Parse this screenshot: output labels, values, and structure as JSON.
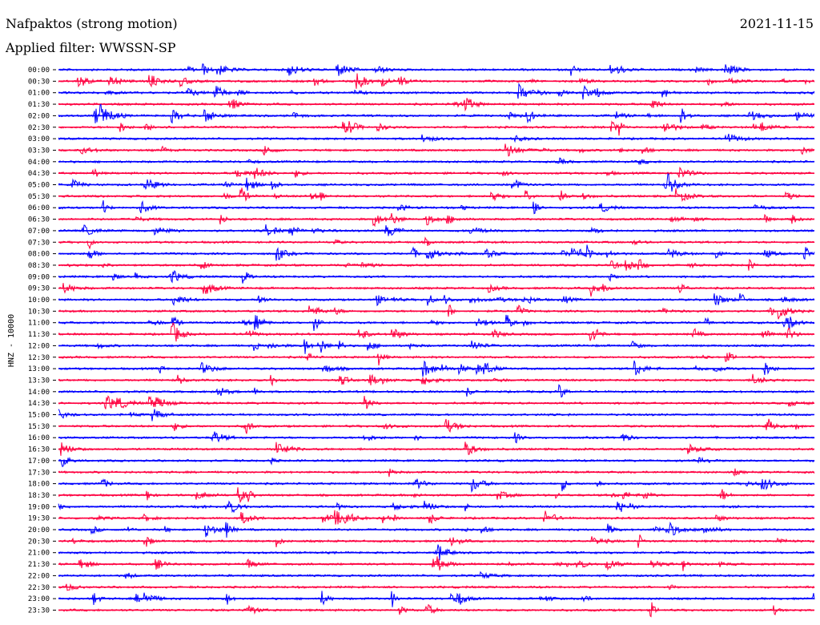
{
  "header": {
    "title": "Nafpaktos (strong motion)",
    "date": "2021-11-15",
    "filter": "Applied filter: WWSSN-SP"
  },
  "chart_data": {
    "type": "line",
    "title": "Nafpaktos (strong motion)",
    "subtitle": "Applied filter: WWSSN-SP",
    "date": "2021-11-15",
    "ylabel": "HNZ - 10000",
    "tick_labels": [
      "00:00",
      "00:30",
      "01:00",
      "01:30",
      "02:00",
      "02:30",
      "03:00",
      "03:30",
      "04:00",
      "04:30",
      "05:00",
      "05:30",
      "06:00",
      "06:30",
      "07:00",
      "07:30",
      "08:00",
      "08:30",
      "09:00",
      "09:30",
      "10:00",
      "10:30",
      "11:00",
      "11:30",
      "12:00",
      "12:30",
      "13:00",
      "13:30",
      "14:00",
      "14:30",
      "15:00",
      "15:30",
      "16:00",
      "16:30",
      "17:00",
      "17:30",
      "18:00",
      "18:30",
      "19:00",
      "19:30",
      "20:00",
      "20:30",
      "21:00",
      "21:30",
      "22:00",
      "22:30",
      "23:00",
      "23:30"
    ],
    "trace_colors": [
      "#0000ff",
      "#ff0040"
    ],
    "line_duration_minutes": 30,
    "grid": false,
    "legend": "none"
  }
}
